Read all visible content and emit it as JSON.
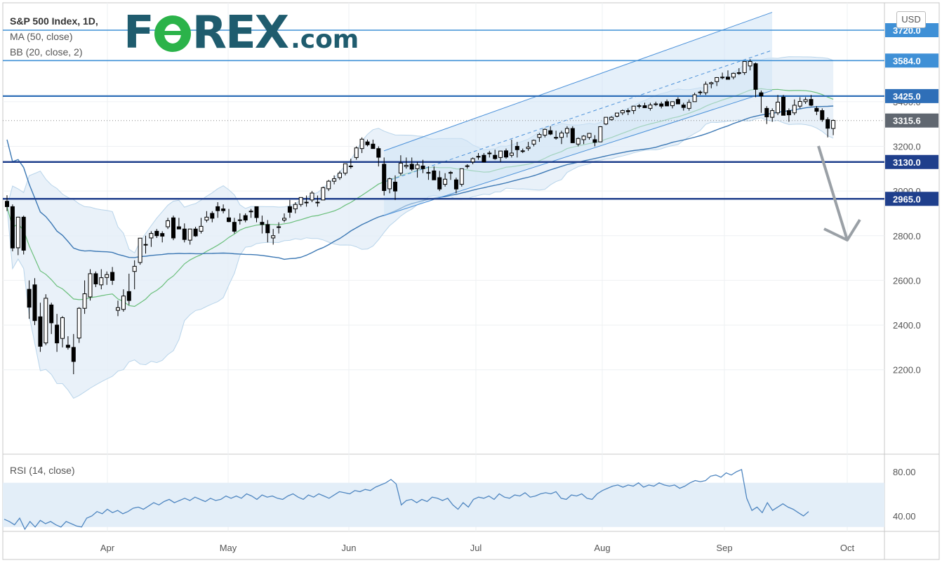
{
  "header": {
    "title": "S&P 500 Index, 1D,",
    "ma_label": "MA (50, close)",
    "bb_label": "BB (20, close, 2)",
    "logo_prefix": "F",
    "logo_rest": "REX",
    "logo_suffix": ".com",
    "currency": "USD",
    "rsi_label": "RSI (14, close)"
  },
  "colors": {
    "candle_up": "#ffffff",
    "candle_down": "#000000",
    "ma50": "#3c78b4",
    "bb_basis": "#6abf7b",
    "bb_band": "#b8d4ea",
    "bb_fill": "#e3eef8",
    "channel_fill": "#cfe3f5",
    "channel_line": "#4a90d9",
    "level_light": "#3f90d6",
    "level_dark": "#1f3f8c",
    "arrow": "#9aa0a6",
    "price_tag": "#606770"
  },
  "chart_data": {
    "type": "candlestick",
    "symbol": "S&P 500 Index",
    "timeframe": "1D",
    "x_axis": {
      "labels": [
        "Apr",
        "May",
        "Jun",
        "Jul",
        "Aug",
        "Sep",
        "Oct"
      ]
    },
    "y_axis": {
      "range": [
        2100,
        3800
      ],
      "ticks": [
        "2200.0",
        "2400.0",
        "2600.0",
        "2800.0",
        "3000.0",
        "3200.0",
        "3400.0"
      ]
    },
    "levels": [
      {
        "value": 3720.0,
        "label": "3720.0",
        "style": "light"
      },
      {
        "value": 3584.0,
        "label": "3584.0",
        "style": "light"
      },
      {
        "value": 3425.0,
        "label": "3425.0",
        "style": "mid"
      },
      {
        "value": 3130.0,
        "label": "3130.0",
        "style": "dark"
      },
      {
        "value": 2965.0,
        "label": "2965.0",
        "style": "dark"
      }
    ],
    "current_price": {
      "value": 3315.6,
      "label": "3315.6"
    },
    "rsi": {
      "range": [
        25,
        88
      ],
      "ticks": [
        "80.00",
        "40.00"
      ],
      "band": [
        30,
        70
      ],
      "values": [
        37,
        35,
        32,
        38,
        28,
        35,
        30,
        36,
        33,
        35,
        32,
        30,
        35,
        33,
        31,
        30,
        38,
        40,
        44,
        42,
        46,
        43,
        45,
        42,
        44,
        47,
        48,
        46,
        49,
        52,
        50,
        53,
        55,
        52,
        54,
        56,
        54,
        57,
        55,
        53,
        56,
        54,
        55,
        58,
        56,
        58,
        56,
        60,
        58,
        55,
        59,
        57,
        58,
        56,
        55,
        58,
        60,
        57,
        55,
        59,
        57,
        60,
        58,
        56,
        59,
        62,
        61,
        60,
        63,
        62,
        64,
        63,
        66,
        68,
        70,
        73,
        69,
        50,
        54,
        55,
        52,
        55,
        53,
        57,
        56,
        54,
        56,
        50,
        46,
        52,
        48,
        55,
        57,
        56,
        58,
        55,
        60,
        57,
        56,
        59,
        58,
        61,
        57,
        58,
        60,
        61,
        60,
        62,
        56,
        55,
        59,
        58,
        60,
        56,
        55,
        60,
        63,
        65,
        67,
        68,
        66,
        68,
        67,
        70,
        66,
        68,
        67,
        70,
        68,
        67,
        68,
        65,
        67,
        70,
        72,
        71,
        72,
        76,
        77,
        75,
        79,
        77,
        80,
        82,
        56,
        45,
        48,
        43,
        52,
        45,
        48,
        51,
        48,
        46,
        43,
        40,
        44
      ]
    },
    "candles": [
      [
        2954,
        2981,
        2910,
        2930
      ],
      [
        2930,
        2940,
        2730,
        2745
      ],
      [
        2746,
        2885,
        2713,
        2883
      ],
      [
        2883,
        2890,
        2716,
        2735
      ],
      [
        2560,
        2600,
        2428,
        2480
      ],
      [
        2580,
        2610,
        2400,
        2420
      ],
      [
        2437,
        2500,
        2280,
        2305
      ],
      [
        2320,
        2538,
        2310,
        2520
      ],
      [
        2490,
        2500,
        2360,
        2410
      ],
      [
        2400,
        2450,
        2280,
        2320
      ],
      [
        2340,
        2440,
        2300,
        2433
      ],
      [
        2310,
        2350,
        2290,
        2300
      ],
      [
        2300,
        2360,
        2180,
        2237
      ],
      [
        2342,
        2480,
        2320,
        2475
      ],
      [
        2475,
        2600,
        2450,
        2540
      ],
      [
        2526,
        2650,
        2510,
        2630
      ],
      [
        2630,
        2640,
        2570,
        2584
      ],
      [
        2580,
        2650,
        2560,
        2612
      ],
      [
        2613,
        2640,
        2580,
        2626
      ],
      [
        2636,
        2660,
        2580,
        2600
      ],
      [
        2466,
        2510,
        2440,
        2478
      ],
      [
        2470,
        2560,
        2460,
        2530
      ],
      [
        2550,
        2630,
        2490,
        2510
      ],
      [
        2640,
        2690,
        2560,
        2663
      ],
      [
        2680,
        2790,
        2670,
        2789
      ],
      [
        2760,
        2800,
        2720,
        2761
      ],
      [
        2790,
        2820,
        2750,
        2810
      ],
      [
        2820,
        2830,
        2790,
        2800
      ],
      [
        2810,
        2820,
        2770,
        2798
      ],
      [
        2840,
        2880,
        2830,
        2867
      ],
      [
        2880,
        2890,
        2780,
        2790
      ],
      [
        2840,
        2880,
        2830,
        2830
      ],
      [
        2830,
        2855,
        2770,
        2783
      ],
      [
        2780,
        2830,
        2760,
        2830
      ],
      [
        2830,
        2840,
        2795,
        2799
      ],
      [
        2820,
        2880,
        2810,
        2842
      ],
      [
        2870,
        2910,
        2860,
        2883
      ],
      [
        2900,
        2910,
        2860,
        2878
      ],
      [
        2930,
        2950,
        2880,
        2912
      ],
      [
        2920,
        2940,
        2900,
        2912
      ],
      [
        2880,
        2920,
        2860,
        2863
      ],
      [
        2860,
        2880,
        2810,
        2820
      ],
      [
        2870,
        2900,
        2850,
        2871
      ],
      [
        2890,
        2900,
        2860,
        2870
      ],
      [
        2910,
        2920,
        2880,
        2910
      ],
      [
        2930,
        2930,
        2860,
        2881
      ],
      [
        2860,
        2890,
        2810,
        2850
      ],
      [
        2850,
        2870,
        2770,
        2813
      ],
      [
        2790,
        2830,
        2760,
        2800
      ],
      [
        2840,
        2860,
        2810,
        2840
      ],
      [
        2870,
        2900,
        2860,
        2878
      ],
      [
        2930,
        2960,
        2880,
        2905
      ],
      [
        2920,
        2950,
        2900,
        2940
      ],
      [
        2940,
        2970,
        2930,
        2971
      ],
      [
        2950,
        2980,
        2930,
        2950
      ],
      [
        2960,
        3000,
        2950,
        2991
      ],
      [
        2950,
        2980,
        2930,
        2948
      ],
      [
        2960,
        3020,
        2960,
        3015
      ],
      [
        3010,
        3050,
        3000,
        3044
      ],
      [
        3044,
        3070,
        3030,
        3055
      ],
      [
        3060,
        3090,
        3050,
        3080
      ],
      [
        3080,
        3120,
        3070,
        3122
      ],
      [
        3112,
        3145,
        3100,
        3112
      ],
      [
        3150,
        3200,
        3140,
        3193
      ],
      [
        3190,
        3240,
        3170,
        3232
      ],
      [
        3220,
        3230,
        3200,
        3207
      ],
      [
        3210,
        3230,
        3190,
        3190
      ],
      [
        3190,
        3200,
        3110,
        3151
      ],
      [
        3120,
        3150,
        2980,
        3002
      ],
      [
        3010,
        3060,
        2990,
        3055
      ],
      [
        3040,
        3070,
        2960,
        3000
      ],
      [
        3080,
        3160,
        3070,
        3125
      ],
      [
        3110,
        3150,
        3100,
        3115
      ],
      [
        3120,
        3150,
        3090,
        3098
      ],
      [
        3100,
        3130,
        3060,
        3117
      ],
      [
        3112,
        3140,
        3080,
        3100
      ],
      [
        3080,
        3110,
        3050,
        3083
      ],
      [
        3090,
        3110,
        3050,
        3050
      ],
      [
        3060,
        3090,
        3000,
        3009
      ],
      [
        3030,
        3080,
        3020,
        3053
      ],
      [
        3080,
        3090,
        3050,
        3083
      ],
      [
        3050,
        3060,
        2990,
        3009
      ],
      [
        3030,
        3100,
        3020,
        3100
      ],
      [
        3110,
        3120,
        3100,
        3113
      ],
      [
        3130,
        3150,
        3120,
        3145
      ],
      [
        3155,
        3170,
        3140,
        3155
      ],
      [
        3160,
        3170,
        3130,
        3130
      ],
      [
        3170,
        3180,
        3150,
        3170
      ],
      [
        3160,
        3185,
        3140,
        3145
      ],
      [
        3150,
        3180,
        3130,
        3179
      ],
      [
        3180,
        3190,
        3145,
        3152
      ],
      [
        3160,
        3230,
        3150,
        3170
      ],
      [
        3200,
        3220,
        3150,
        3185
      ],
      [
        3180,
        3190,
        3170,
        3177
      ],
      [
        3190,
        3220,
        3180,
        3197
      ],
      [
        3210,
        3230,
        3200,
        3227
      ],
      [
        3240,
        3260,
        3220,
        3253
      ],
      [
        3250,
        3280,
        3240,
        3276
      ],
      [
        3270,
        3290,
        3250,
        3255
      ],
      [
        3240,
        3270,
        3230,
        3237
      ],
      [
        3240,
        3270,
        3210,
        3260
      ],
      [
        3260,
        3290,
        3240,
        3280
      ],
      [
        3280,
        3290,
        3215,
        3216
      ],
      [
        3210,
        3240,
        3200,
        3235
      ],
      [
        3230,
        3250,
        3210,
        3246
      ],
      [
        3240,
        3260,
        3230,
        3258
      ],
      [
        3230,
        3250,
        3200,
        3218
      ],
      [
        3220,
        3290,
        3220,
        3288
      ],
      [
        3300,
        3330,
        3295,
        3330
      ],
      [
        3320,
        3335,
        3315,
        3330
      ],
      [
        3335,
        3350,
        3330,
        3349
      ],
      [
        3350,
        3365,
        3340,
        3360
      ],
      [
        3360,
        3370,
        3340,
        3355
      ],
      [
        3360,
        3380,
        3345,
        3380
      ],
      [
        3380,
        3390,
        3370,
        3382
      ],
      [
        3382,
        3395,
        3375,
        3373
      ],
      [
        3370,
        3395,
        3360,
        3385
      ],
      [
        3390,
        3400,
        3380,
        3390
      ],
      [
        3390,
        3400,
        3370,
        3380
      ],
      [
        3400,
        3410,
        3380,
        3381
      ],
      [
        3382,
        3400,
        3370,
        3400
      ],
      [
        3410,
        3420,
        3390,
        3390
      ],
      [
        3385,
        3395,
        3360,
        3374
      ],
      [
        3370,
        3410,
        3360,
        3397
      ],
      [
        3400,
        3440,
        3400,
        3431
      ],
      [
        3440,
        3450,
        3430,
        3443
      ],
      [
        3440,
        3490,
        3430,
        3478
      ],
      [
        3480,
        3490,
        3460,
        3485
      ],
      [
        3490,
        3510,
        3470,
        3508
      ],
      [
        3510,
        3530,
        3500,
        3509
      ],
      [
        3510,
        3540,
        3500,
        3500
      ],
      [
        3510,
        3530,
        3500,
        3527
      ],
      [
        3530,
        3550,
        3520,
        3526
      ],
      [
        3530,
        3570,
        3520,
        3580
      ],
      [
        3560,
        3590,
        3540,
        3580
      ],
      [
        3570,
        3575,
        3420,
        3455
      ],
      [
        3440,
        3450,
        3350,
        3426
      ],
      [
        3370,
        3380,
        3300,
        3332
      ],
      [
        3330,
        3370,
        3310,
        3360
      ],
      [
        3350,
        3430,
        3340,
        3398
      ],
      [
        3420,
        3430,
        3340,
        3339
      ],
      [
        3360,
        3370,
        3310,
        3341
      ],
      [
        3350,
        3410,
        3340,
        3384
      ],
      [
        3380,
        3420,
        3370,
        3401
      ],
      [
        3400,
        3420,
        3390,
        3409
      ],
      [
        3410,
        3430,
        3380,
        3384
      ],
      [
        3370,
        3380,
        3340,
        3357
      ],
      [
        3360,
        3370,
        3310,
        3320
      ],
      [
        3320,
        3330,
        3240,
        3281
      ],
      [
        3280,
        3320,
        3250,
        3316
      ]
    ]
  }
}
